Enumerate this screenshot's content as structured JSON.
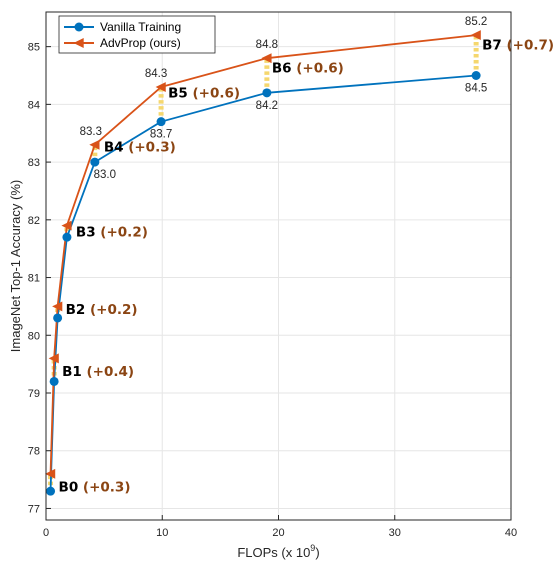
{
  "chart_data": {
    "type": "line",
    "xlabel": "FLOPs (x 10",
    "xlabel_exponent": "9",
    "xlabel_suffix": ")",
    "ylabel": "ImageNet Top-1 Accuracy (%)",
    "xlim": [
      0,
      40
    ],
    "ylim": [
      76.8,
      85.6
    ],
    "xticks": [
      0,
      10,
      20,
      30,
      40
    ],
    "yticks": [
      77,
      78,
      79,
      80,
      81,
      82,
      83,
      84,
      85
    ],
    "legend_position": "top-left",
    "series": [
      {
        "name": "Vanilla Training",
        "color": "#0072BD",
        "marker": "circle",
        "x": [
          0.39,
          0.7,
          1.0,
          1.8,
          4.2,
          9.9,
          19,
          37
        ],
        "y": [
          77.3,
          79.2,
          80.3,
          81.7,
          83.0,
          83.7,
          84.2,
          84.5
        ]
      },
      {
        "name": "AdvProp (ours)",
        "color": "#D95319",
        "marker": "triangle-left",
        "x": [
          0.39,
          0.7,
          1.0,
          1.8,
          4.2,
          9.9,
          19,
          37
        ],
        "y": [
          77.6,
          79.6,
          80.5,
          81.9,
          83.3,
          84.3,
          84.8,
          85.2
        ]
      }
    ],
    "gap_color": "#F5D76E",
    "models": [
      {
        "name": "B0",
        "gain": "(+0.3)"
      },
      {
        "name": "B1",
        "gain": "(+0.4)"
      },
      {
        "name": "B2",
        "gain": "(+0.2)"
      },
      {
        "name": "B3",
        "gain": "(+0.2)"
      },
      {
        "name": "B4",
        "gain": "(+0.3)"
      },
      {
        "name": "B5",
        "gain": "(+0.6)"
      },
      {
        "name": "B6",
        "gain": "(+0.6)"
      },
      {
        "name": "B7",
        "gain": "(+0.7)"
      }
    ],
    "gain_color": "#8B4513",
    "value_labels": {
      "vanilla": [
        {
          "index": 4,
          "text": "83.0"
        },
        {
          "index": 5,
          "text": "83.7"
        },
        {
          "index": 6,
          "text": "84.2"
        },
        {
          "index": 7,
          "text": "84.5"
        }
      ],
      "advprop": [
        {
          "index": 4,
          "text": "83.3"
        },
        {
          "index": 5,
          "text": "84.3"
        },
        {
          "index": 6,
          "text": "84.8"
        },
        {
          "index": 7,
          "text": "85.2"
        }
      ]
    }
  }
}
